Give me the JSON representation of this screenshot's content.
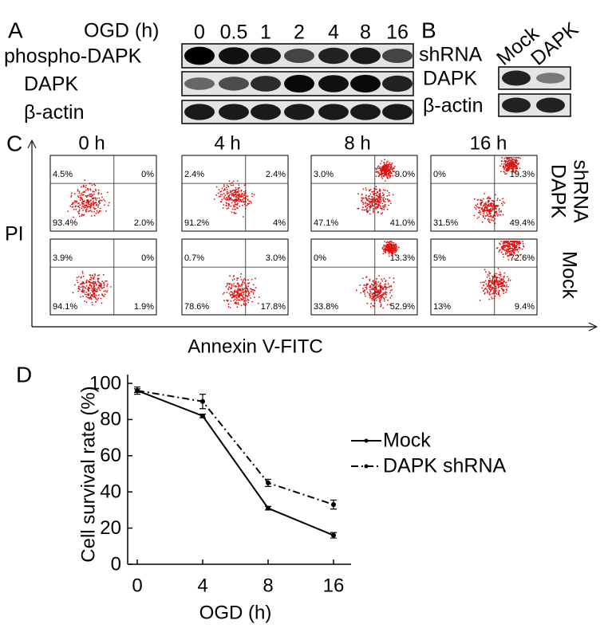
{
  "panel_a": {
    "label": "A",
    "time_label": "OGD (h)",
    "lanes": [
      "0",
      "0.5",
      "1",
      "2",
      "4",
      "8",
      "16"
    ],
    "rows": [
      "phospho-DAPK",
      "DAPK",
      "β-actin"
    ]
  },
  "panel_b": {
    "label": "B",
    "row_title": "shRNA",
    "lanes": [
      "Mock",
      "DAPK"
    ],
    "rows": [
      "DAPK",
      "β-actin"
    ]
  },
  "panel_c": {
    "label": "C",
    "columns": [
      "0 h",
      "4 h",
      "8 h",
      "16 h"
    ],
    "rows": [
      [
        "DAPK",
        "shRNA"
      ],
      [
        "Mock"
      ]
    ],
    "y_axis": "PI",
    "x_axis": "Annexin V-FITC",
    "quadrants": [
      [
        [
          "4.5%",
          "0%",
          "93.4%",
          "2.0%"
        ],
        [
          "2.4%",
          "2.4%",
          "91.2%",
          "4%"
        ],
        [
          "3.0%",
          "9.0%",
          "47.1%",
          "41.0%"
        ],
        [
          "0%",
          "19.3%",
          "31.5%",
          "49.4%"
        ]
      ],
      [
        [
          "3.9%",
          "0%",
          "94.1%",
          "1.9%"
        ],
        [
          "0.7%",
          "3.0%",
          "78.6%",
          "17.8%"
        ],
        [
          "0%",
          "13.3%",
          "33.8%",
          "52.9%"
        ],
        [
          "5%",
          "72.6%",
          "13%",
          "9.4%"
        ]
      ]
    ]
  },
  "chart_data": {
    "type": "line",
    "panel_label": "D",
    "x_label": "OGD (h)",
    "y_label": "Cell survival rate (%)",
    "categories": [
      "0",
      "4",
      "8",
      "16"
    ],
    "series": [
      {
        "name": "Mock",
        "color": "#000000",
        "dash": "solid",
        "values": [
          96,
          82,
          31,
          16
        ],
        "errors": [
          1,
          1,
          1,
          1.5
        ]
      },
      {
        "name": "DAPK shRNA",
        "color": "#000000",
        "dash": "dashdot",
        "values": [
          96,
          90,
          45,
          33
        ],
        "errors": [
          2,
          4,
          2,
          2.5
        ]
      }
    ],
    "ylim": [
      0,
      100
    ],
    "yticks": [
      0,
      20,
      40,
      60,
      80,
      100
    ],
    "grid": false,
    "legend": "right"
  }
}
